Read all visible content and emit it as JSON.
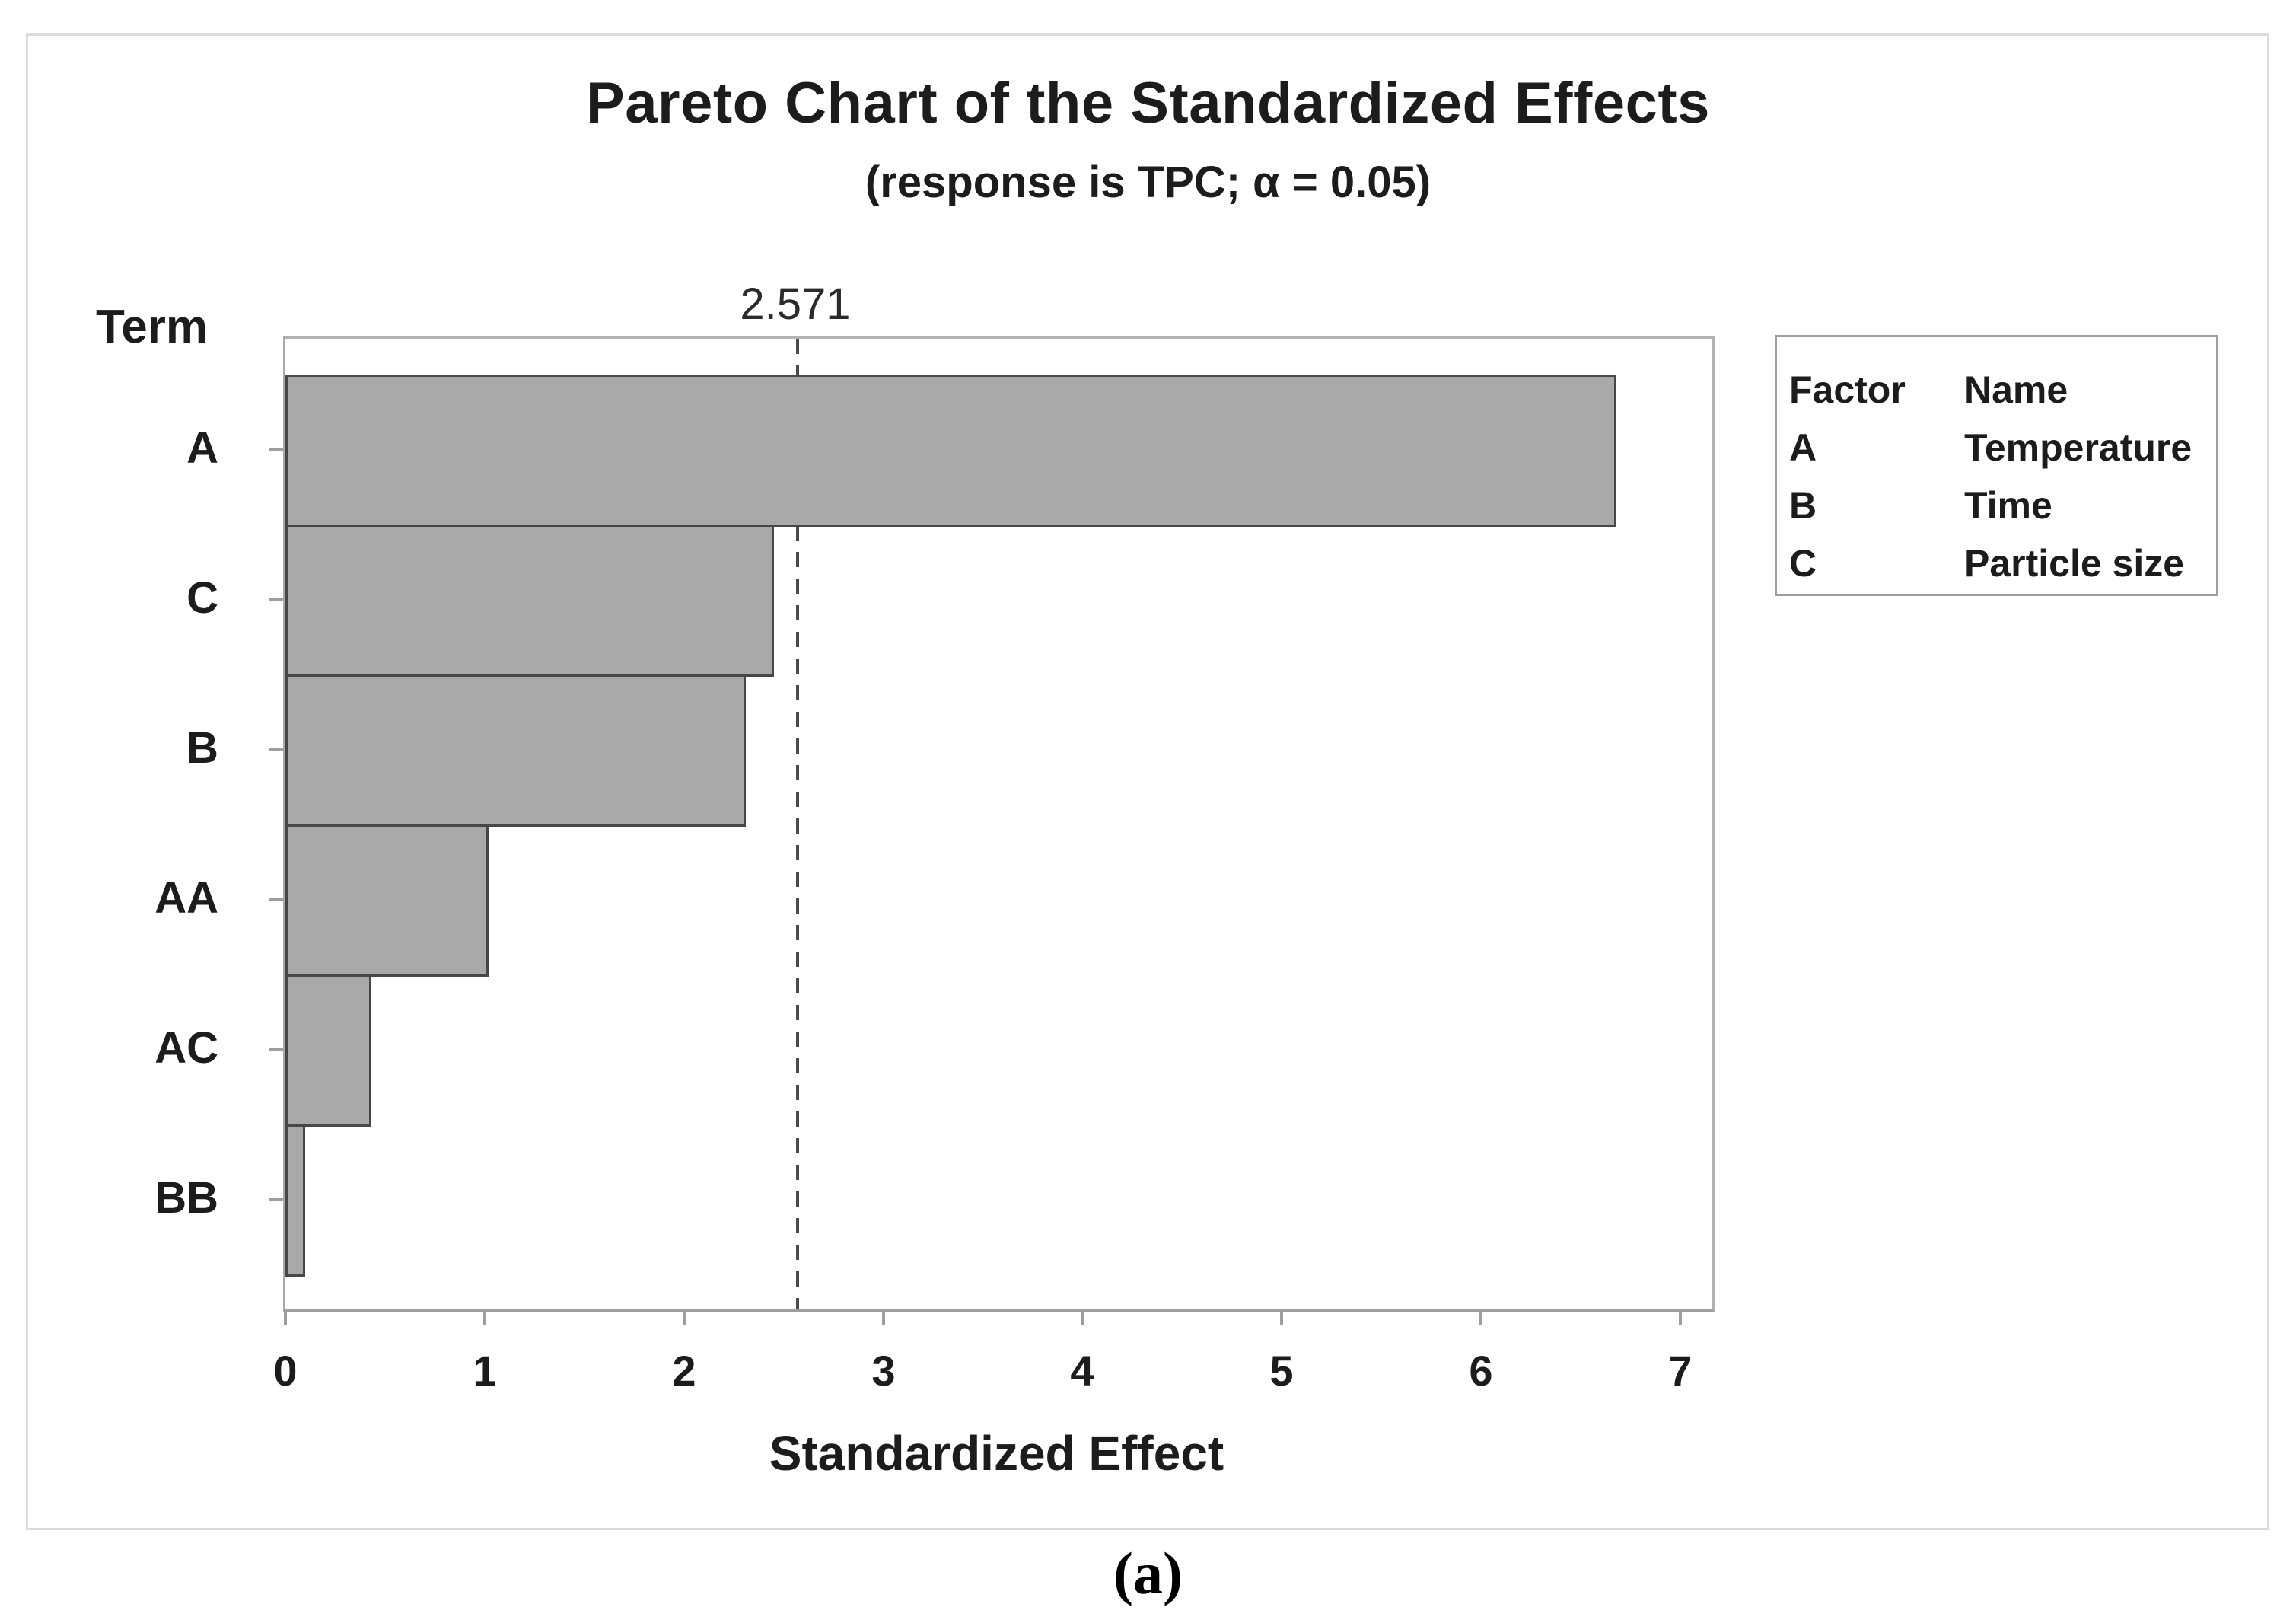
{
  "figure": {
    "caption": "(a)"
  },
  "chart_data": {
    "type": "bar",
    "orientation": "horizontal",
    "title": "Pareto Chart of the Standardized Effects",
    "subtitle": "(response is TPC; α = 0.05)",
    "xlabel": "Standardized Effect",
    "ylabel": "Term",
    "categories": [
      "A",
      "C",
      "B",
      "AA",
      "AC",
      "BB"
    ],
    "values": [
      6.68,
      2.45,
      2.31,
      1.02,
      0.43,
      0.1
    ],
    "xlim": [
      0,
      7.16
    ],
    "xticks": [
      0,
      1,
      2,
      3,
      4,
      5,
      6,
      7
    ],
    "grid": false,
    "legend_position": "outside-right",
    "reference_line": {
      "value": 2.571,
      "label": "2.571",
      "style": "dashed"
    },
    "legend": {
      "headers": [
        "Factor",
        "Name"
      ],
      "rows": [
        {
          "factor": "A",
          "name": "Temperature"
        },
        {
          "factor": "B",
          "name": "Time"
        },
        {
          "factor": "C",
          "name": "Particle size"
        }
      ]
    },
    "colors": {
      "bar_fill": "#a9a9a9",
      "bar_border": "#474747",
      "axis_line": "#9e9e9e",
      "reference_line": "#4b4b4b",
      "text": "#1c1c1c"
    }
  }
}
